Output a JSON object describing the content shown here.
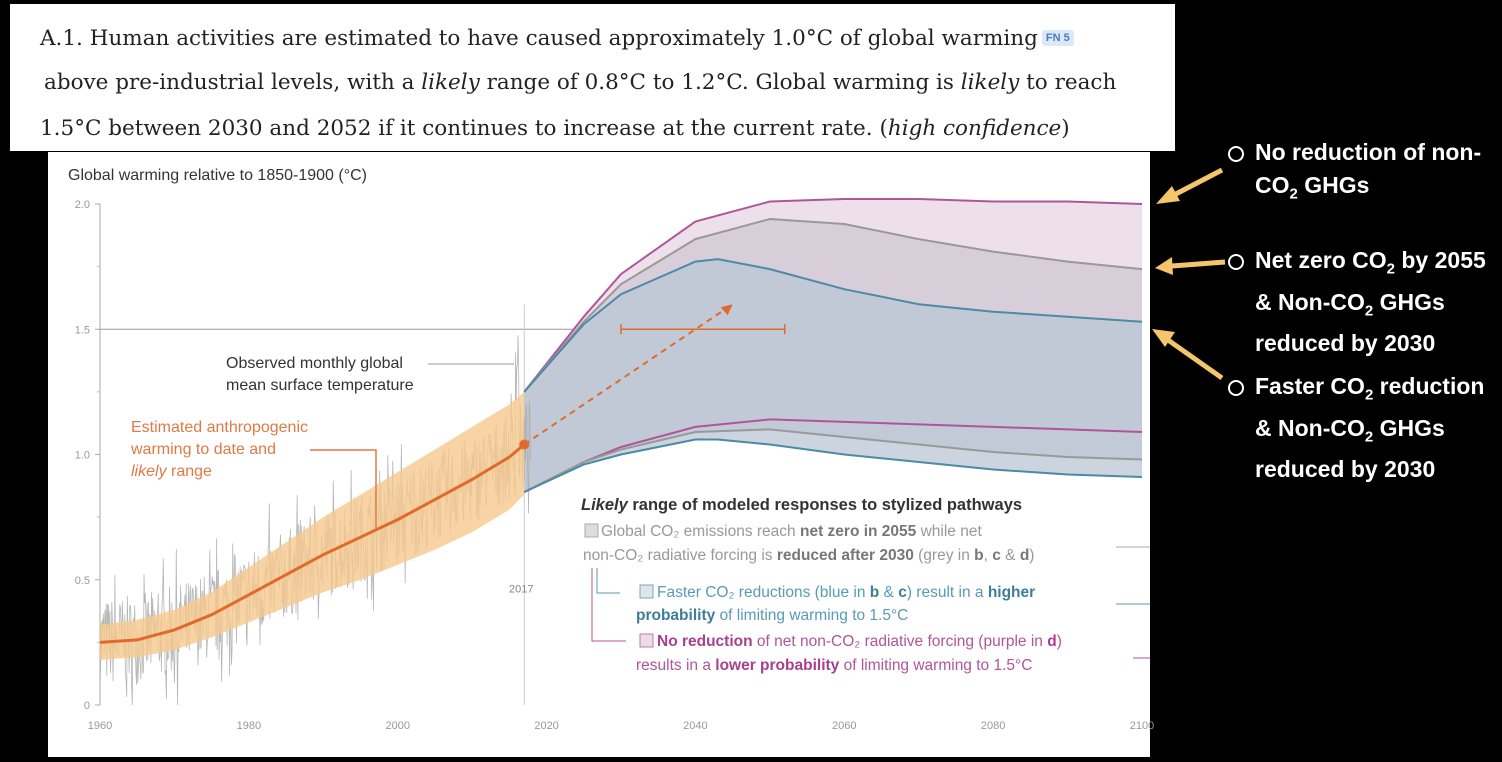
{
  "headline": {
    "line1": "A.1. Human activities are estimated to have caused approximately 1.0°C of global warming",
    "footnote": "FN 5",
    "line2_a": " above pre-industrial levels, with a ",
    "line2_likely": "likely",
    "line2_b": " range of 0.8°C to 1.2°C. Global warming is ",
    "line2_likely2": "likely",
    "line2_c": " to reach",
    "line3_a": "1.5°C between 2030 and 2052 if it continues to increase at the current rate. (",
    "line3_conf": "high confidence",
    "line3_b": ")"
  },
  "chart_data": {
    "type": "line",
    "title": "Global warming relative to 1850-1900 (°C)",
    "xlim": [
      1960,
      2100
    ],
    "ylim": [
      0,
      2.0
    ],
    "x_ticks": [
      "1960",
      "1980",
      "2000",
      "2020",
      "2040",
      "2060",
      "2080",
      "2100"
    ],
    "y_ticks": [
      "0",
      "0.5",
      "1.0",
      "1.5",
      "2.0"
    ],
    "reference_line": 1.5,
    "marker_year_label": "2017",
    "anthropogenic": {
      "x": [
        1960,
        1965,
        1970,
        1975,
        1980,
        1985,
        1990,
        1995,
        2000,
        2005,
        2010,
        2015,
        2017
      ],
      "y": [
        0.25,
        0.26,
        0.3,
        0.36,
        0.44,
        0.52,
        0.6,
        0.67,
        0.74,
        0.82,
        0.9,
        0.99,
        1.04
      ],
      "low": [
        0.18,
        0.19,
        0.22,
        0.27,
        0.33,
        0.39,
        0.45,
        0.5,
        0.56,
        0.62,
        0.69,
        0.78,
        0.84
      ],
      "high": [
        0.32,
        0.34,
        0.38,
        0.45,
        0.55,
        0.65,
        0.75,
        0.84,
        0.93,
        1.02,
        1.11,
        1.2,
        1.25
      ]
    },
    "observed_noise_amplitude": 0.18,
    "projection_arrow": {
      "from": [
        2017,
        1.04
      ],
      "to": [
        2045,
        1.6
      ]
    },
    "range_bar_1_5": [
      2030,
      2052
    ],
    "pathways": [
      {
        "name": "purple",
        "color": "#b0559a",
        "fill": "#e8d6e4",
        "x": [
          2017,
          2025,
          2030,
          2040,
          2050,
          2060,
          2070,
          2080,
          2090,
          2100
        ],
        "upper": [
          1.25,
          1.55,
          1.72,
          1.93,
          2.01,
          2.02,
          2.02,
          2.01,
          2.01,
          2.0
        ],
        "lower": [
          0.85,
          0.97,
          1.03,
          1.11,
          1.14,
          1.13,
          1.12,
          1.11,
          1.1,
          1.09
        ]
      },
      {
        "name": "grey",
        "color": "#999999",
        "fill": "#cfc8d4",
        "x": [
          2017,
          2025,
          2030,
          2040,
          2050,
          2060,
          2070,
          2080,
          2090,
          2100
        ],
        "upper": [
          1.25,
          1.53,
          1.68,
          1.86,
          1.94,
          1.92,
          1.86,
          1.81,
          1.77,
          1.74
        ],
        "lower": [
          0.85,
          0.97,
          1.02,
          1.09,
          1.1,
          1.07,
          1.04,
          1.01,
          0.99,
          0.98
        ]
      },
      {
        "name": "blue",
        "color": "#4b8ba6",
        "fill": "#b9c6d4",
        "x": [
          2017,
          2025,
          2030,
          2040,
          2043,
          2050,
          2060,
          2070,
          2080,
          2090,
          2100
        ],
        "upper": [
          1.25,
          1.52,
          1.64,
          1.77,
          1.78,
          1.74,
          1.66,
          1.6,
          1.57,
          1.55,
          1.53
        ],
        "lower": [
          0.85,
          0.96,
          1.0,
          1.06,
          1.06,
          1.04,
          1.0,
          0.97,
          0.94,
          0.92,
          0.91
        ]
      }
    ],
    "annotations": {
      "observed": [
        "Observed monthly global",
        "mean surface temperature"
      ],
      "estimated": [
        "Estimated anthropogenic",
        "warming to date and",
        "likely",
        " range"
      ]
    },
    "legend": {
      "title_italic": "Likely",
      "title_rest": " range of modeled responses to stylized pathways",
      "grey": [
        "Global CO₂ emissions reach ",
        "net zero in 2055",
        " while net",
        "non-CO₂ radiative forcing is ",
        "reduced after 2030",
        " (grey in ",
        "b",
        ", ",
        "c",
        " & ",
        "d",
        ")"
      ],
      "blue": [
        "Faster CO₂ reductions (blue in ",
        "b",
        " & ",
        "c",
        ") result in a ",
        "higher",
        "probability",
        " of limiting warming to 1.5°C"
      ],
      "purple": [
        "No reduction",
        " of net non-CO₂ radiative forcing (purple in ",
        "d",
        ")",
        "results in a ",
        "lower probability",
        " of limiting warming to 1.5°C"
      ]
    }
  },
  "side_notes": [
    {
      "a": "No reduction of non-",
      "b": "CO",
      "sub": "2",
      "c": " GHGs"
    },
    {
      "a": "Net zero CO",
      "sub1": "2",
      "b": " by 2055",
      "c": "& Non-CO",
      "sub2": "2",
      "d": " GHGs",
      "e": "reduced by 2030"
    },
    {
      "a": "Faster CO",
      "sub1": "2",
      "b": " reduction",
      "c": "& Non-CO",
      "sub2": "2",
      "d": " GHGs",
      "e": "reduced by 2030"
    }
  ],
  "arrow_color": "#f5c56b"
}
